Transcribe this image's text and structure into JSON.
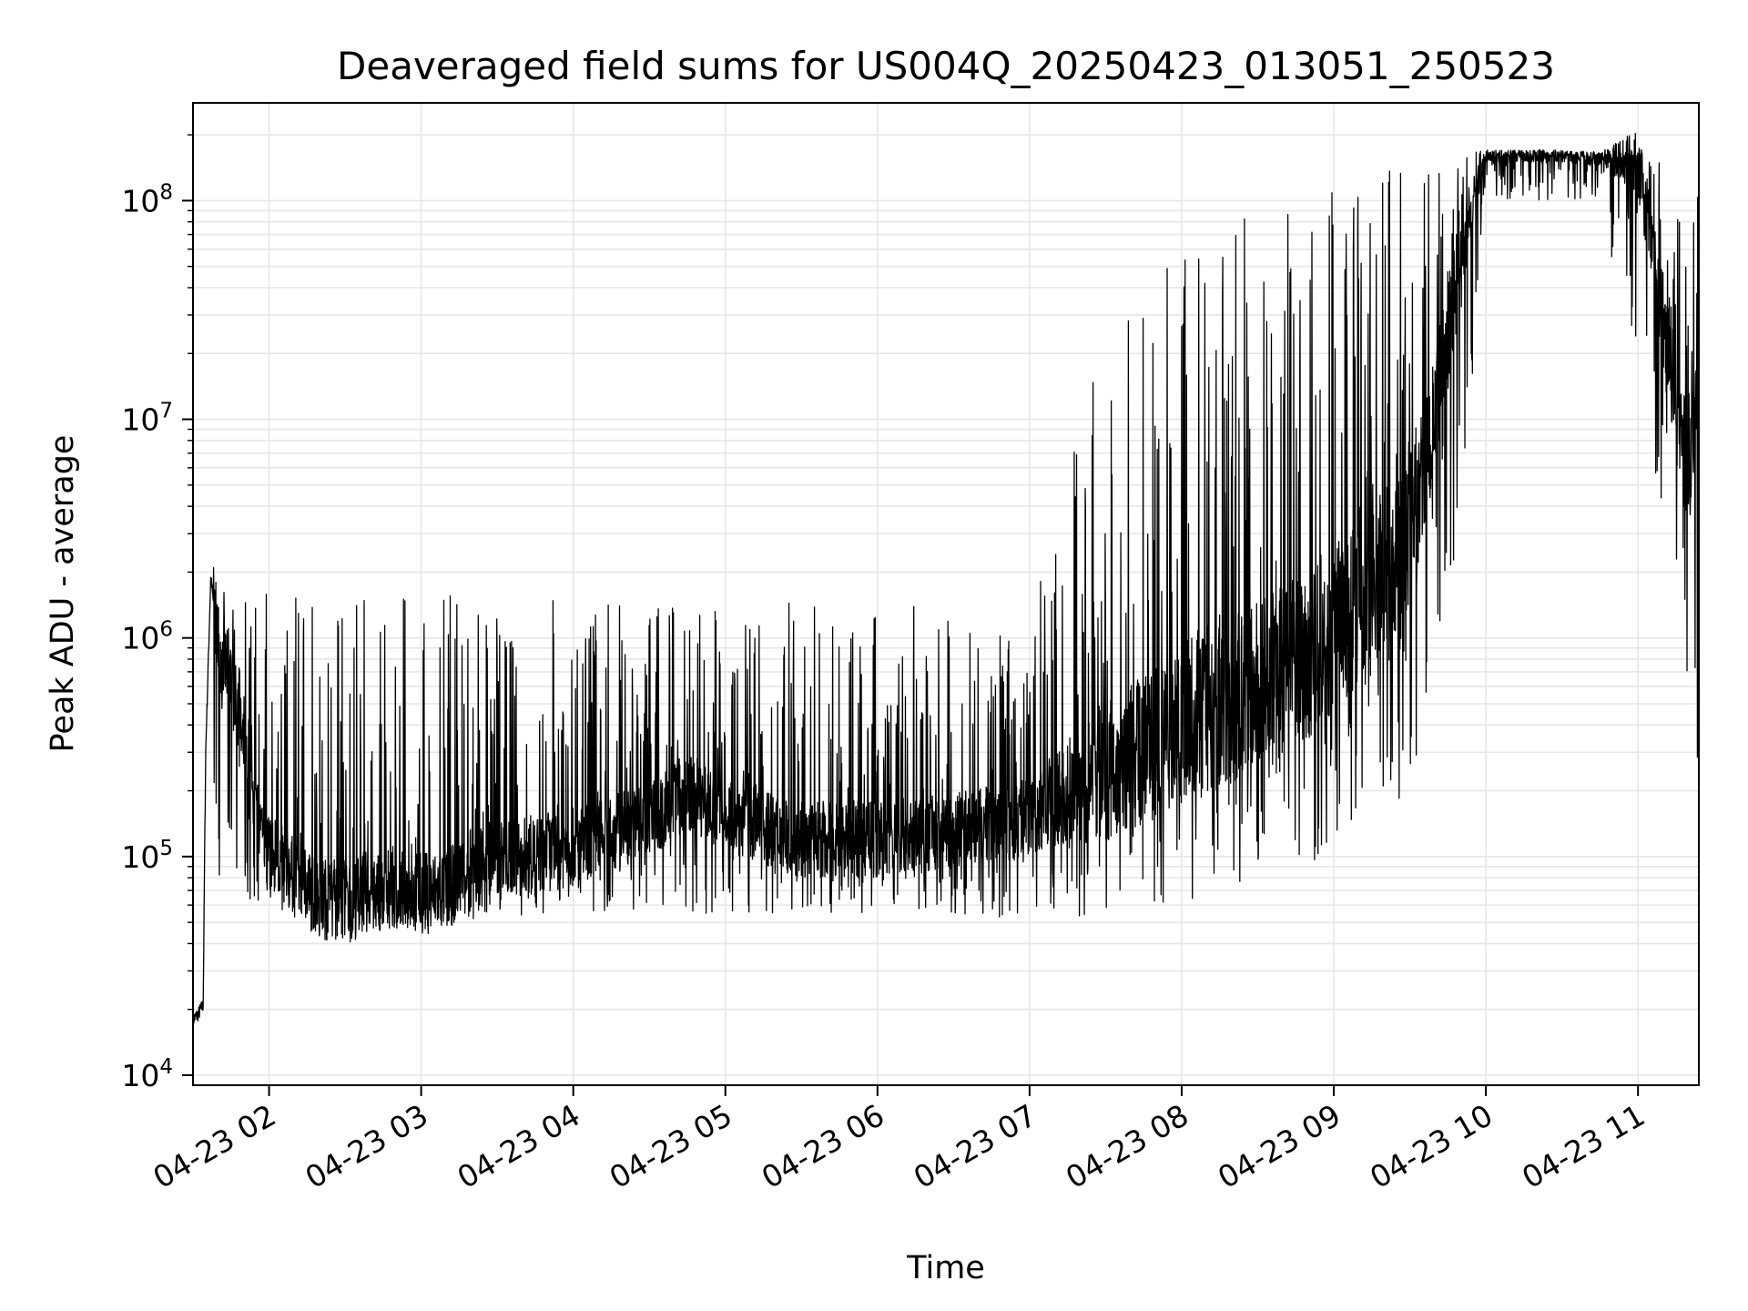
{
  "chart_data": {
    "type": "line",
    "title": "Deaveraged field sums for US004Q_20250423_013051_250523",
    "xlabel": "Time",
    "ylabel": "Peak ADU - average",
    "yscale": "log",
    "xlim": [
      "04-23 01:30",
      "04-23 11:24"
    ],
    "ylim": [
      9000,
      280000000
    ],
    "grid": true,
    "legend": "none",
    "line_color": "#000000",
    "x_ticks": [
      "04-23 02",
      "04-23 03",
      "04-23 04",
      "04-23 05",
      "04-23 06",
      "04-23 07",
      "04-23 08",
      "04-23 09",
      "04-23 10",
      "04-23 11"
    ],
    "y_ticks": [
      {
        "value": 10000,
        "base": "10",
        "exp": "4"
      },
      {
        "value": 100000,
        "base": "10",
        "exp": "5"
      },
      {
        "value": 1000000,
        "base": "10",
        "exp": "6"
      },
      {
        "value": 10000000,
        "base": "10",
        "exp": "7"
      },
      {
        "value": 100000000,
        "base": "10",
        "exp": "8"
      }
    ],
    "series": [
      {
        "baseline": [
          [
            "04-23 01:30",
            18000
          ],
          [
            "04-23 01:32",
            19000
          ],
          [
            "04-23 01:34",
            21000
          ],
          [
            "04-23 01:35",
            300000
          ],
          [
            "04-23 01:37",
            1900000
          ],
          [
            "04-23 01:40",
            900000
          ],
          [
            "04-23 01:45",
            650000
          ],
          [
            "04-23 01:50",
            300000
          ],
          [
            "04-23 01:55",
            150000
          ],
          [
            "04-23 02:00",
            110000
          ],
          [
            "04-23 02:10",
            80000
          ],
          [
            "04-23 02:20",
            65000
          ],
          [
            "04-23 02:30",
            62000
          ],
          [
            "04-23 02:40",
            70000
          ],
          [
            "04-23 02:50",
            72000
          ],
          [
            "04-23 03:00",
            68000
          ],
          [
            "04-23 03:10",
            70000
          ],
          [
            "04-23 03:20",
            90000
          ],
          [
            "04-23 03:40",
            100000
          ],
          [
            "04-23 04:00",
            110000
          ],
          [
            "04-23 04:30",
            150000
          ],
          [
            "04-23 04:45",
            200000
          ],
          [
            "04-23 05:00",
            160000
          ],
          [
            "04-23 05:30",
            120000
          ],
          [
            "04-23 06:00",
            120000
          ],
          [
            "04-23 06:30",
            130000
          ],
          [
            "04-23 07:00",
            150000
          ],
          [
            "04-23 07:30",
            250000
          ],
          [
            "04-23 08:00",
            400000
          ],
          [
            "04-23 08:30",
            600000
          ],
          [
            "04-23 09:00",
            1000000
          ],
          [
            "04-23 09:30",
            3000000
          ],
          [
            "04-23 09:40",
            10000000
          ],
          [
            "04-23 09:50",
            60000000
          ],
          [
            "04-23 10:00",
            160000000
          ],
          [
            "04-23 10:30",
            160000000
          ],
          [
            "04-23 11:00",
            150000000
          ],
          [
            "04-23 11:10",
            30000000
          ],
          [
            "04-23 11:20",
            5000000
          ],
          [
            "04-23 11:24",
            20000000
          ]
        ],
        "upper_envelope": [
          [
            "04-23 01:40",
            1800000
          ],
          [
            "04-23 02:00",
            1600000
          ],
          [
            "04-23 03:00",
            1600000
          ],
          [
            "04-23 04:00",
            1500000
          ],
          [
            "04-23 05:00",
            1450000
          ],
          [
            "04-23 06:00",
            1450000
          ],
          [
            "04-23 06:50",
            1300000
          ],
          [
            "04-23 07:00",
            1200000
          ],
          [
            "04-23 07:30",
            25000000
          ],
          [
            "04-23 08:00",
            60000000
          ],
          [
            "04-23 08:30",
            100000000
          ],
          [
            "04-23 09:00",
            130000000
          ],
          [
            "04-23 09:30",
            150000000
          ],
          [
            "04-23 10:00",
            170000000
          ],
          [
            "04-23 11:00",
            170000000
          ],
          [
            "04-23 11:24",
            150000000
          ]
        ],
        "lower_envelope": [
          [
            "04-23 02:00",
            60000
          ],
          [
            "04-23 02:30",
            45000
          ],
          [
            "04-23 03:00",
            50000
          ],
          [
            "04-23 04:00",
            55000
          ],
          [
            "04-23 05:00",
            55000
          ],
          [
            "04-23 06:00",
            55000
          ],
          [
            "04-23 07:00",
            50000
          ],
          [
            "04-23 08:00",
            60000
          ],
          [
            "04-23 08:30",
            80000
          ],
          [
            "04-23 09:00",
            100000
          ],
          [
            "04-23 09:30",
            200000
          ],
          [
            "04-23 09:50",
            3000000
          ],
          [
            "04-23 10:00",
            100000000
          ],
          [
            "04-23 10:45",
            100000000
          ],
          [
            "04-23 11:00",
            10000000
          ],
          [
            "04-23 11:24",
            250000
          ]
        ]
      }
    ]
  }
}
